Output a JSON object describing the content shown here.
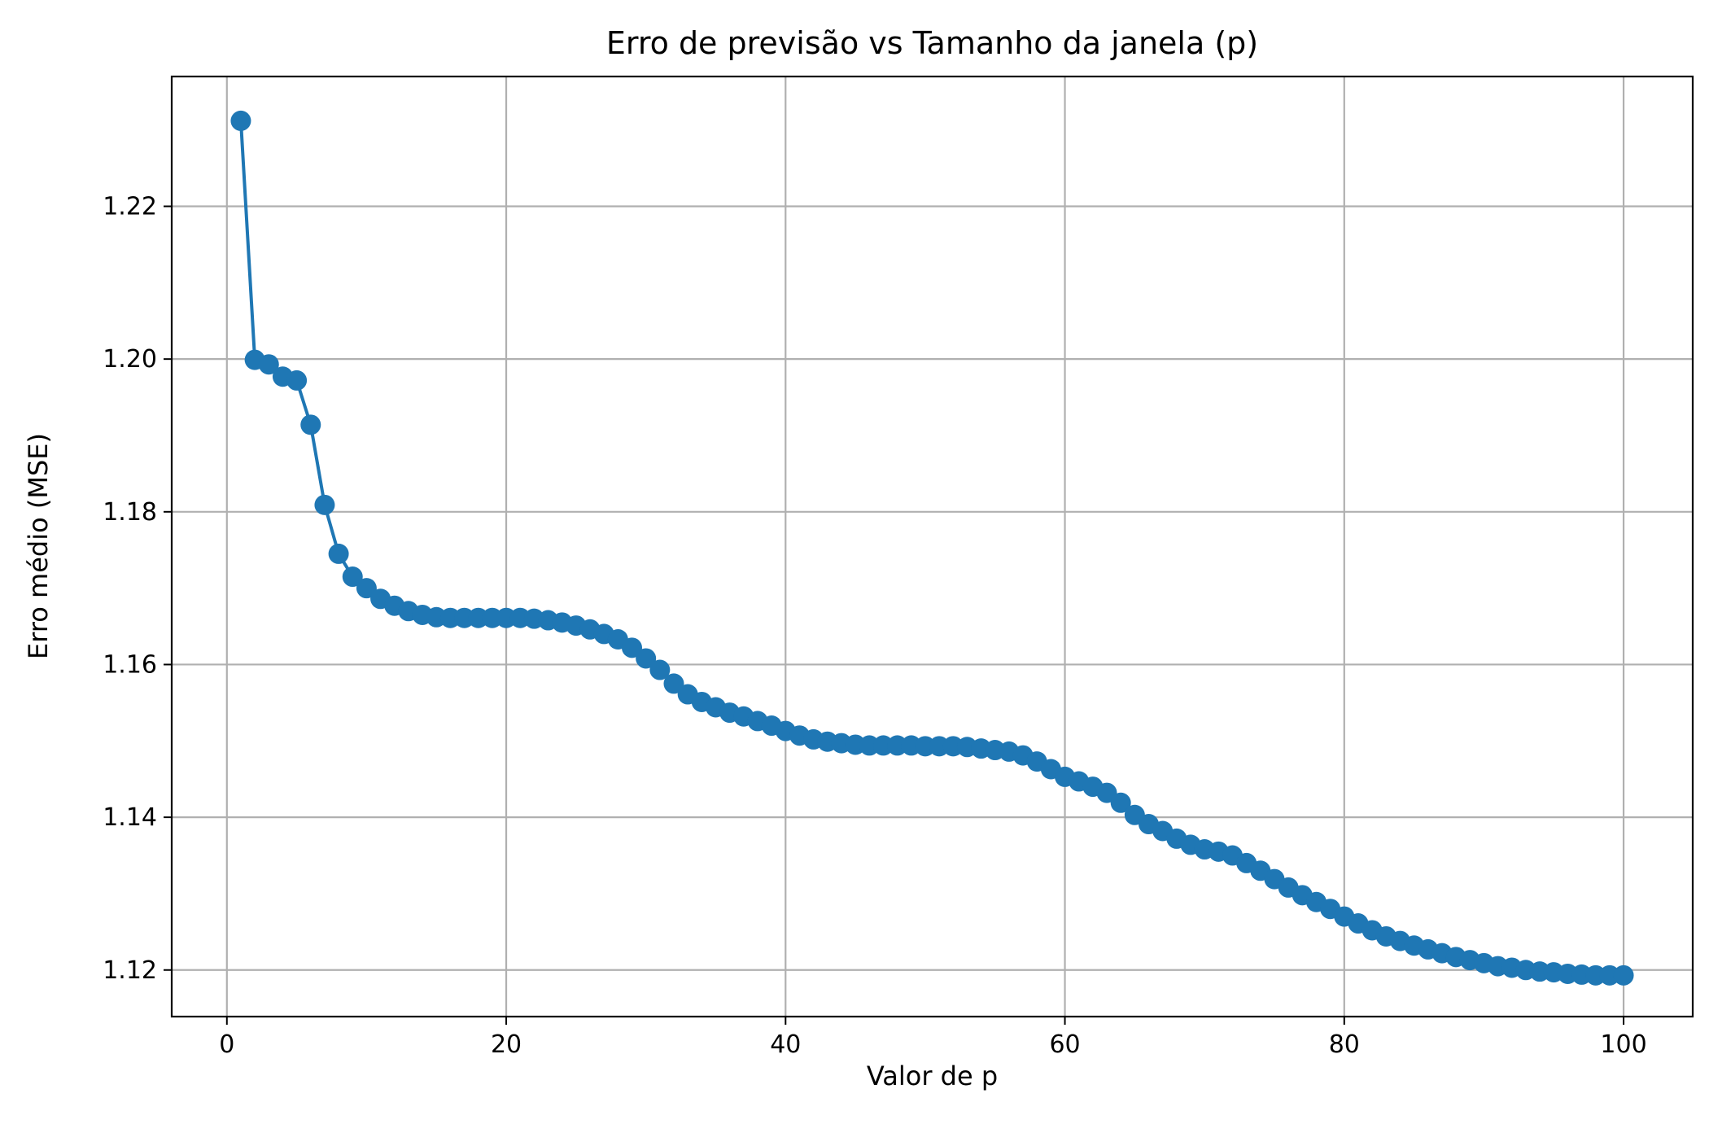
{
  "chart_data": {
    "type": "line",
    "title": "Erro de previsão vs Tamanho da janela (p)",
    "xlabel": "Valor de p",
    "ylabel": "Erro médio (MSE)",
    "xlim": [
      -3.95,
      104.95
    ],
    "ylim": [
      1.1139,
      1.237
    ],
    "xticks": [
      0,
      20,
      40,
      60,
      80,
      100
    ],
    "xtick_labels": [
      "0",
      "20",
      "40",
      "60",
      "80",
      "100"
    ],
    "yticks": [
      1.12,
      1.14,
      1.16,
      1.18,
      1.2,
      1.22
    ],
    "ytick_labels": [
      "1.12",
      "1.14",
      "1.16",
      "1.18",
      "1.20",
      "1.22"
    ],
    "grid": true,
    "line_color": "#1f77b4",
    "marker": "circle",
    "series": [
      {
        "x": [
          1,
          2,
          3,
          4,
          5,
          6,
          7,
          8,
          9,
          10,
          11,
          12,
          13,
          14,
          15,
          16,
          17,
          18,
          19,
          20,
          21,
          22,
          23,
          24,
          25,
          26,
          27,
          28,
          29,
          30,
          31,
          32,
          33,
          34,
          35,
          36,
          37,
          38,
          39,
          40,
          41,
          42,
          43,
          44,
          45,
          46,
          47,
          48,
          49,
          50,
          51,
          52,
          53,
          54,
          55,
          56,
          57,
          58,
          59,
          60,
          61,
          62,
          63,
          64,
          65,
          66,
          67,
          68,
          69,
          70,
          71,
          72,
          73,
          74,
          75,
          76,
          77,
          78,
          79,
          80,
          81,
          82,
          83,
          84,
          85,
          86,
          87,
          88,
          89,
          90,
          91,
          92,
          93,
          94,
          95,
          96,
          97,
          98,
          99,
          100
        ],
        "y": [
          1.2312,
          1.1999,
          1.1993,
          1.1977,
          1.1972,
          1.1914,
          1.1809,
          1.1745,
          1.1715,
          1.17,
          1.1686,
          1.1677,
          1.167,
          1.1665,
          1.1662,
          1.1661,
          1.1661,
          1.1661,
          1.1661,
          1.1661,
          1.1661,
          1.166,
          1.1658,
          1.1655,
          1.1651,
          1.1646,
          1.164,
          1.1633,
          1.1622,
          1.1608,
          1.1593,
          1.1575,
          1.1561,
          1.1551,
          1.1544,
          1.1537,
          1.1532,
          1.1526,
          1.152,
          1.1513,
          1.1507,
          1.1502,
          1.1499,
          1.1497,
          1.1495,
          1.1494,
          1.1494,
          1.1494,
          1.1494,
          1.1493,
          1.1493,
          1.1493,
          1.1492,
          1.149,
          1.1488,
          1.1486,
          1.1481,
          1.1473,
          1.1463,
          1.1453,
          1.1447,
          1.144,
          1.1432,
          1.1419,
          1.1403,
          1.1391,
          1.1382,
          1.1372,
          1.1364,
          1.1358,
          1.1355,
          1.135,
          1.134,
          1.133,
          1.1319,
          1.1308,
          1.1298,
          1.1289,
          1.128,
          1.127,
          1.1261,
          1.1252,
          1.1244,
          1.1238,
          1.1232,
          1.1227,
          1.1222,
          1.1217,
          1.1213,
          1.1209,
          1.1205,
          1.1203,
          1.12,
          1.1198,
          1.1197,
          1.1195,
          1.1194,
          1.1193,
          1.1193,
          1.1193
        ]
      }
    ]
  }
}
